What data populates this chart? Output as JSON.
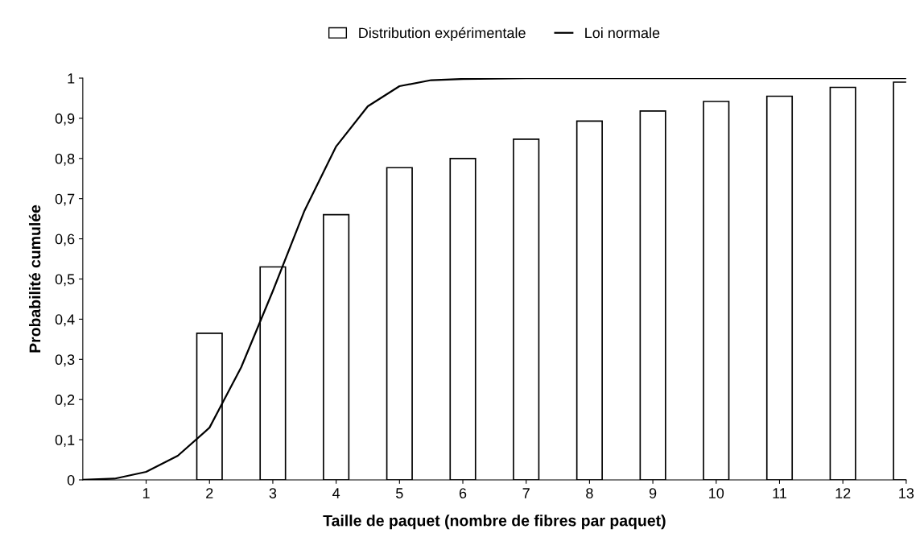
{
  "chart_data": {
    "type": "bar",
    "xlabel": "Taille de paquet (nombre de fibres par paquet)",
    "ylabel": "Probabilité cumulée",
    "x": [
      2,
      3,
      4,
      5,
      6,
      7,
      8,
      9,
      10,
      11,
      12,
      13
    ],
    "series": [
      {
        "name": "Distribution expérimentale",
        "color": "#ffffff",
        "values": [
          0.365,
          0.53,
          0.66,
          0.777,
          0.8,
          0.848,
          0.893,
          0.918,
          0.942,
          0.955,
          0.977,
          0.99
        ]
      },
      {
        "name": "Loi normale",
        "type": "line",
        "color": "#000000",
        "x": [
          0,
          0.5,
          1,
          1.5,
          2,
          2.5,
          3,
          3.5,
          4,
          4.5,
          5,
          5.5,
          6,
          7,
          8,
          9,
          10,
          11,
          12,
          13
        ],
        "values": [
          0,
          0.003,
          0.02,
          0.06,
          0.13,
          0.28,
          0.47,
          0.67,
          0.83,
          0.93,
          0.98,
          0.995,
          0.998,
          1,
          1,
          1,
          1,
          1,
          1,
          1
        ]
      }
    ],
    "xlim": [
      0,
      13
    ],
    "xticks": [
      1,
      2,
      3,
      4,
      5,
      6,
      7,
      8,
      9,
      10,
      11,
      12,
      13
    ],
    "ylim": [
      0,
      1
    ],
    "yticks": [
      0,
      {
        "value": 0.1,
        "label": "0,1"
      },
      {
        "value": 0.2,
        "label": "0,2"
      },
      {
        "value": 0.3,
        "label": "0,3"
      },
      {
        "value": 0.4,
        "label": "0,4"
      },
      {
        "value": 0.5,
        "label": "0,5"
      },
      {
        "value": 0.6,
        "label": "0,6"
      },
      {
        "value": 0.7,
        "label": "0,7"
      },
      {
        "value": 0.8,
        "label": "0,8"
      },
      {
        "value": 0.9,
        "label": "0,9"
      },
      1
    ],
    "grid": false,
    "legend": "top",
    "marker": "none",
    "line_style": "solid"
  }
}
